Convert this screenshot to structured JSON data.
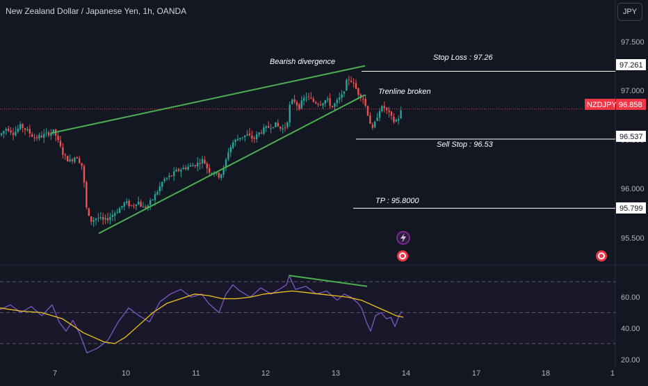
{
  "header": {
    "symbol_title": "New Zealand Dollar / Japanese Yen, 1h, OANDA",
    "currency_button": "JPY"
  },
  "colors": {
    "background": "#131722",
    "up_candle": "#26a69a",
    "down_candle": "#ef5350",
    "trendline": "#4caf50",
    "rsi_line": "#7e57c2",
    "rsi_ma": "#f0c419",
    "price_badge": "#f23645"
  },
  "price_axis": {
    "ticks": [
      "97.500",
      "97.000",
      "96.500",
      "96.000",
      "95.500"
    ],
    "current_price": {
      "symbol": "NZDJPY",
      "value": "96.858"
    },
    "level_labels": [
      "97.261",
      "96.537",
      "95.799"
    ]
  },
  "time_axis": {
    "ticks": [
      "7",
      "10",
      "11",
      "12",
      "13",
      "14",
      "17",
      "18",
      "1"
    ]
  },
  "rsi_axis": {
    "ticks": [
      "60.00",
      "40.00",
      "20.00"
    ]
  },
  "annotations": {
    "bearish_divergence": "Bearish divergence",
    "trendline_broken": "Trenline broken",
    "stop_loss": "Stop Loss : 97.26",
    "sell_stop": "Sell Stop : 96.53",
    "take_profit": "TP : 95.8000"
  },
  "chart_data": {
    "type": "candlestick",
    "title": "New Zealand Dollar / Japanese Yen, 1h, OANDA",
    "ylim": [
      95.2,
      97.8
    ],
    "current_price": 96.858,
    "horizontal_levels": [
      {
        "label": "Stop Loss : 97.26",
        "value": 97.261
      },
      {
        "label": "Sell Stop : 96.53",
        "value": 96.537
      },
      {
        "label": "TP : 95.8000",
        "value": 95.799
      }
    ],
    "price_path": [
      [
        0,
        96.58
      ],
      [
        10,
        96.66
      ],
      [
        20,
        96.6
      ],
      [
        30,
        96.68
      ],
      [
        40,
        96.62
      ],
      [
        50,
        96.55
      ],
      [
        60,
        96.57
      ],
      [
        70,
        96.6
      ],
      [
        78,
        96.62
      ],
      [
        85,
        96.48
      ],
      [
        92,
        96.36
      ],
      [
        100,
        96.3
      ],
      [
        110,
        96.36
      ],
      [
        118,
        96.25
      ],
      [
        122,
        96.0
      ],
      [
        125,
        95.75
      ],
      [
        130,
        95.66
      ],
      [
        140,
        95.7
      ],
      [
        150,
        95.66
      ],
      [
        160,
        95.72
      ],
      [
        170,
        95.78
      ],
      [
        180,
        95.86
      ],
      [
        190,
        95.82
      ],
      [
        198,
        95.88
      ],
      [
        205,
        95.8
      ],
      [
        212,
        95.82
      ],
      [
        220,
        95.9
      ],
      [
        228,
        96.0
      ],
      [
        235,
        96.1
      ],
      [
        245,
        96.14
      ],
      [
        255,
        96.2
      ],
      [
        265,
        96.23
      ],
      [
        275,
        96.25
      ],
      [
        285,
        96.28
      ],
      [
        292,
        96.32
      ],
      [
        300,
        96.2
      ],
      [
        308,
        96.18
      ],
      [
        316,
        96.14
      ],
      [
        322,
        96.22
      ],
      [
        328,
        96.4
      ],
      [
        335,
        96.5
      ],
      [
        345,
        96.56
      ],
      [
        355,
        96.58
      ],
      [
        365,
        96.54
      ],
      [
        375,
        96.62
      ],
      [
        385,
        96.66
      ],
      [
        395,
        96.7
      ],
      [
        405,
        96.64
      ],
      [
        412,
        96.68
      ],
      [
        417,
        96.9
      ],
      [
        422,
        96.96
      ],
      [
        430,
        96.88
      ],
      [
        440,
        97.0
      ],
      [
        450,
        96.94
      ],
      [
        460,
        96.92
      ],
      [
        470,
        96.96
      ],
      [
        478,
        96.88
      ],
      [
        485,
        96.94
      ],
      [
        492,
        97.0
      ],
      [
        498,
        97.14
      ],
      [
        503,
        97.19
      ],
      [
        510,
        97.1
      ],
      [
        516,
        97.02
      ],
      [
        522,
        96.98
      ],
      [
        527,
        96.86
      ],
      [
        531,
        96.76
      ],
      [
        535,
        96.62
      ],
      [
        540,
        96.72
      ],
      [
        545,
        96.85
      ],
      [
        552,
        96.88
      ],
      [
        560,
        96.8
      ],
      [
        567,
        96.72
      ],
      [
        573,
        96.76
      ],
      [
        578,
        96.86
      ]
    ],
    "trendlines": [
      {
        "name": "upper",
        "from": [
          73,
          96.6
        ],
        "to": [
          525,
          97.32
        ]
      },
      {
        "name": "lower",
        "from": [
          142,
          95.53
        ],
        "to": [
          525,
          97.01
        ]
      }
    ],
    "rsi": {
      "ylim": [
        15,
        76
      ],
      "levels": [
        70,
        50,
        30
      ],
      "series_rsi": [
        [
          0,
          52
        ],
        [
          15,
          55
        ],
        [
          30,
          50
        ],
        [
          45,
          54
        ],
        [
          60,
          48
        ],
        [
          75,
          55
        ],
        [
          85,
          44
        ],
        [
          95,
          38
        ],
        [
          105,
          45
        ],
        [
          115,
          36
        ],
        [
          125,
          24
        ],
        [
          140,
          27
        ],
        [
          155,
          32
        ],
        [
          170,
          44
        ],
        [
          185,
          53
        ],
        [
          200,
          48
        ],
        [
          215,
          44
        ],
        [
          230,
          57
        ],
        [
          245,
          62
        ],
        [
          260,
          65
        ],
        [
          275,
          60
        ],
        [
          290,
          62
        ],
        [
          300,
          56
        ],
        [
          315,
          50
        ],
        [
          325,
          62
        ],
        [
          335,
          68
        ],
        [
          345,
          64
        ],
        [
          360,
          60
        ],
        [
          375,
          66
        ],
        [
          390,
          62
        ],
        [
          405,
          66
        ],
        [
          412,
          68
        ],
        [
          416,
          74
        ],
        [
          425,
          65
        ],
        [
          440,
          67
        ],
        [
          455,
          62
        ],
        [
          470,
          64
        ],
        [
          485,
          58
        ],
        [
          495,
          62
        ],
        [
          505,
          60
        ],
        [
          515,
          56
        ],
        [
          520,
          53
        ],
        [
          527,
          44
        ],
        [
          533,
          38
        ],
        [
          540,
          48
        ],
        [
          548,
          50
        ],
        [
          556,
          46
        ],
        [
          562,
          47
        ],
        [
          568,
          41
        ],
        [
          574,
          48
        ],
        [
          578,
          51
        ]
      ],
      "series_ma": [
        [
          0,
          53
        ],
        [
          30,
          51
        ],
        [
          60,
          50
        ],
        [
          90,
          46
        ],
        [
          120,
          37
        ],
        [
          150,
          31
        ],
        [
          165,
          30
        ],
        [
          180,
          34
        ],
        [
          200,
          42
        ],
        [
          220,
          50
        ],
        [
          240,
          56
        ],
        [
          260,
          59
        ],
        [
          280,
          62
        ],
        [
          300,
          61
        ],
        [
          320,
          59
        ],
        [
          340,
          59
        ],
        [
          360,
          60
        ],
        [
          380,
          62
        ],
        [
          400,
          63
        ],
        [
          420,
          64
        ],
        [
          440,
          63
        ],
        [
          460,
          62
        ],
        [
          480,
          61
        ],
        [
          500,
          60
        ],
        [
          520,
          58
        ],
        [
          540,
          54
        ],
        [
          555,
          51
        ],
        [
          570,
          48
        ],
        [
          580,
          47
        ]
      ],
      "divergence_line": {
        "from": [
          416,
          74
        ],
        "to": [
          528,
          67
        ]
      }
    }
  }
}
